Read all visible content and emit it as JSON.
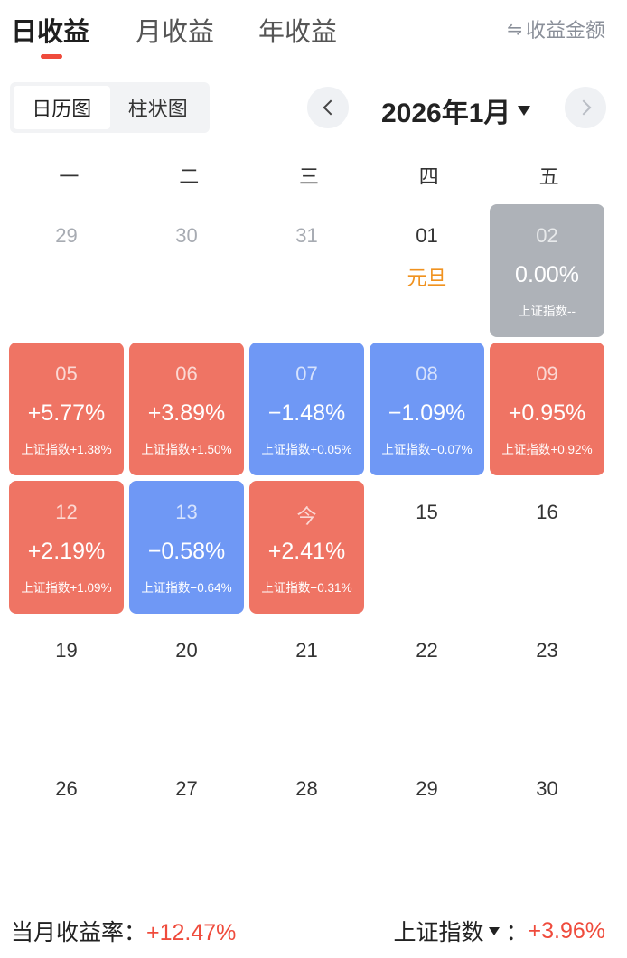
{
  "tabs": [
    {
      "label": "日收益",
      "active": true
    },
    {
      "label": "月收益",
      "active": false
    },
    {
      "label": "年收益",
      "active": false
    }
  ],
  "toggle": {
    "icon": "swap-icon",
    "label": "收益金额"
  },
  "view_switch": {
    "calendar": "日历图",
    "bar": "柱状图"
  },
  "month": {
    "title": "2026年1月"
  },
  "weekdays": [
    "一",
    "二",
    "三",
    "四",
    "五"
  ],
  "days": [
    {
      "day": "29",
      "state": "muted"
    },
    {
      "day": "30",
      "state": "muted"
    },
    {
      "day": "31",
      "state": "muted"
    },
    {
      "day": "01",
      "state": "holiday",
      "holiday": "元旦"
    },
    {
      "day": "02",
      "state": "gray",
      "pct": "0.00%",
      "idx": "上证指数--"
    },
    {
      "day": "05",
      "state": "red",
      "pct": "+5.77%",
      "idx": "上证指数+1.38%"
    },
    {
      "day": "06",
      "state": "red",
      "pct": "+3.89%",
      "idx": "上证指数+1.50%"
    },
    {
      "day": "07",
      "state": "blue",
      "pct": "−1.48%",
      "idx": "上证指数+0.05%"
    },
    {
      "day": "08",
      "state": "blue",
      "pct": "−1.09%",
      "idx": "上证指数−0.07%"
    },
    {
      "day": "09",
      "state": "red",
      "pct": "+0.95%",
      "idx": "上证指数+0.92%"
    },
    {
      "day": "12",
      "state": "red",
      "pct": "+2.19%",
      "idx": "上证指数+1.09%"
    },
    {
      "day": "13",
      "state": "blue",
      "pct": "−0.58%",
      "idx": "上证指数−0.64%"
    },
    {
      "day": "今",
      "state": "red",
      "pct": "+2.41%",
      "idx": "上证指数−0.31%"
    },
    {
      "day": "15",
      "state": "plain"
    },
    {
      "day": "16",
      "state": "plain"
    },
    {
      "day": "19",
      "state": "plain"
    },
    {
      "day": "20",
      "state": "plain"
    },
    {
      "day": "21",
      "state": "plain"
    },
    {
      "day": "22",
      "state": "plain"
    },
    {
      "day": "23",
      "state": "plain"
    },
    {
      "day": "26",
      "state": "plain"
    },
    {
      "day": "27",
      "state": "plain"
    },
    {
      "day": "28",
      "state": "plain"
    },
    {
      "day": "29",
      "state": "plain"
    },
    {
      "day": "30",
      "state": "plain"
    }
  ],
  "footer": {
    "month_rate_label": "当月收益率：",
    "month_rate_value": "+12.47%",
    "index_label": "上证指数",
    "index_sep": "：",
    "index_value": "+3.96%"
  },
  "colors": {
    "accent": "#ef4b3c",
    "up": "#ef7464",
    "down": "#6f98f5",
    "flat": "#aeb2b8",
    "holiday": "#f0921f"
  }
}
